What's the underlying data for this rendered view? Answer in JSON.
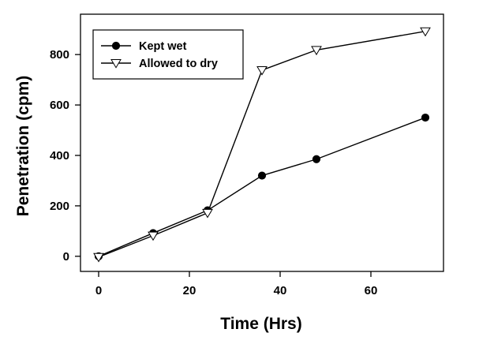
{
  "chart_data": {
    "type": "line",
    "title": "",
    "xlabel": "Time (Hrs)",
    "ylabel": "Penetration (cpm)",
    "xlim": [
      -4,
      76
    ],
    "ylim": [
      -60,
      960
    ],
    "xticks": [
      0,
      20,
      40,
      60
    ],
    "yticks": [
      0,
      200,
      400,
      600,
      800
    ],
    "grid": false,
    "legend_position": "top-left",
    "series": [
      {
        "name": "Kept wet",
        "marker": "filled-circle",
        "color": "#000000",
        "x": [
          0,
          12,
          24,
          36,
          48,
          72
        ],
        "y": [
          0,
          92,
          182,
          320,
          385,
          550
        ]
      },
      {
        "name": "Allowed to dry",
        "marker": "open-triangle-down",
        "color": "#000000",
        "x": [
          0,
          12,
          24,
          36,
          48,
          72
        ],
        "y": [
          -3,
          82,
          172,
          738,
          818,
          892
        ]
      }
    ]
  }
}
